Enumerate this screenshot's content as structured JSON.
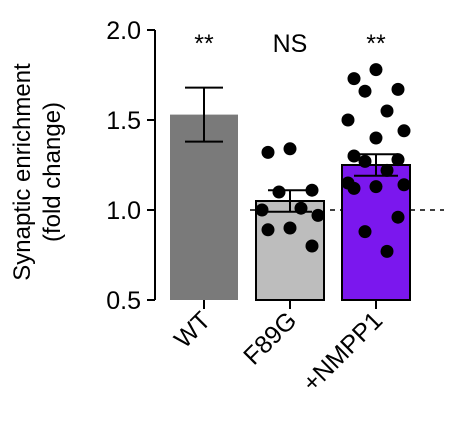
{
  "chart_data": {
    "type": "bar",
    "ylabel_line1": "Synaptic enrichment",
    "ylabel_line2": "(fold change)",
    "ylim": [
      0.5,
      2.0
    ],
    "yticks": [
      {
        "value": 0.5,
        "label": "0.5"
      },
      {
        "value": 1.0,
        "label": "1.0"
      },
      {
        "value": 1.5,
        "label": "1.5"
      },
      {
        "value": 2.0,
        "label": "2.0"
      }
    ],
    "reference_line": 1.0,
    "categories": [
      "WT",
      "F89G",
      "+NMPP1"
    ],
    "bars": [
      {
        "category": "WT",
        "value": 1.53,
        "error": 0.15,
        "color": "#7a7a7a",
        "significance": "**",
        "points": []
      },
      {
        "category": "F89G",
        "value": 1.05,
        "error": 0.06,
        "color": "#bdbdbd",
        "significance": "NS",
        "points": [
          1.34,
          1.32,
          1.11,
          1.1,
          1.01,
          1.0,
          0.97,
          0.9,
          0.89,
          0.8
        ]
      },
      {
        "category": "+NMPP1",
        "value": 1.25,
        "error": 0.06,
        "color": "#7b17ee",
        "significance": "**",
        "points": [
          1.78,
          1.73,
          1.67,
          1.66,
          1.55,
          1.5,
          1.44,
          1.4,
          1.3,
          1.28,
          1.27,
          1.22,
          1.15,
          1.14,
          1.13,
          1.12,
          0.96,
          0.88,
          0.77
        ]
      }
    ]
  }
}
